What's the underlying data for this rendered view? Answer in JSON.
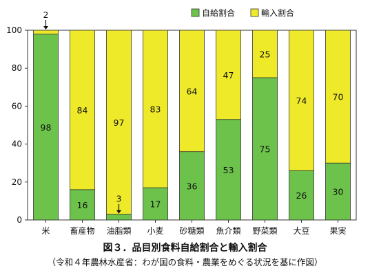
{
  "chart_data": {
    "type": "bar",
    "stacked": true,
    "categories": [
      "米",
      "畜産物",
      "油脂類",
      "小麦",
      "砂糖類",
      "魚介類",
      "野菜類",
      "大豆",
      "果実"
    ],
    "series": [
      {
        "name": "自給割合",
        "color": "#6cc24a",
        "values": [
          98,
          16,
          3,
          17,
          36,
          53,
          75,
          26,
          30
        ]
      },
      {
        "name": "輸入割合",
        "color": "#eeea2a",
        "values": [
          2,
          84,
          97,
          83,
          64,
          47,
          25,
          74,
          70
        ]
      }
    ],
    "ylim": [
      0,
      100
    ],
    "yticks": [
      "0",
      "20",
      "40",
      "60",
      "80",
      "100"
    ],
    "legend_position": "top-right",
    "annotations": [
      {
        "category": "米",
        "series": "輸入割合",
        "text": "2",
        "style": "arrow-above"
      },
      {
        "category": "油脂類",
        "series": "自給割合",
        "text": "3",
        "style": "arrow-above"
      }
    ],
    "title": "図３．品目別食料自給割合と輸入割合",
    "subtitle": "（令和４年農林水産省：わが国の食料・農業をめぐる状況を基に作図）"
  }
}
